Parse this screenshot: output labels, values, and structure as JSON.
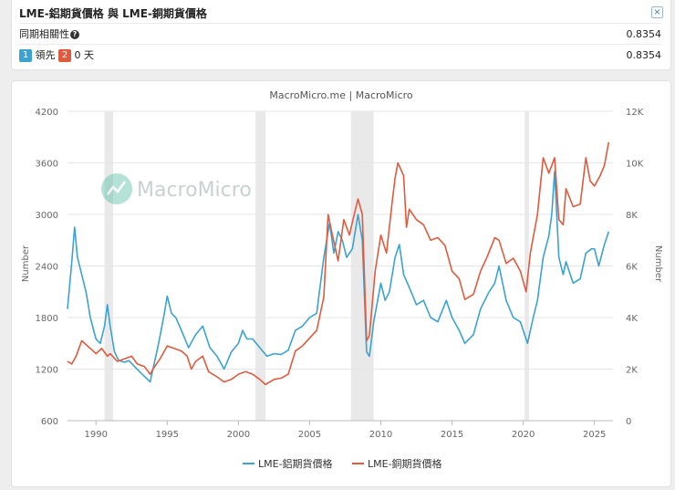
{
  "header": {
    "title": "LME-鋁期貨價格 與 LME-銅期貨價格",
    "close_label": "×",
    "correlation_label": "同期相關性",
    "correlation_value": "0.8354",
    "lead_badge_1": "1",
    "lead_text": "領先",
    "lead_badge_2": "2",
    "lead_days": "0 天",
    "lead_value": "0.8354"
  },
  "colors": {
    "aluminum": "#3aa3d1",
    "copper": "#e05a3e",
    "recession": "#e9e9e9"
  },
  "chart_data": {
    "type": "line",
    "title": "MacroMicro.me | MacroMicro",
    "watermark": "MacroMicro",
    "xlabel": "",
    "x_ticks": [
      "1990",
      "1995",
      "2000",
      "2005",
      "2010",
      "2015",
      "2020",
      "2025"
    ],
    "x_range": [
      1988,
      2026.3
    ],
    "y_left": {
      "label": "Number",
      "range": [
        600,
        4200
      ],
      "ticks": [
        "600",
        "1200",
        "1800",
        "2400",
        "3000",
        "3600",
        "4200"
      ]
    },
    "y_right": {
      "label": "Number",
      "range": [
        0,
        12000
      ],
      "ticks": [
        "0",
        "2K",
        "4K",
        "6K",
        "8K",
        "10K",
        "12K"
      ]
    },
    "recession_bands": [
      [
        1990.6,
        1991.2
      ],
      [
        2001.2,
        2001.9
      ],
      [
        2007.9,
        2009.5
      ],
      [
        2020.1,
        2020.4
      ]
    ],
    "series": [
      {
        "name": "LME-鋁期貨價格",
        "axis": "left",
        "points": [
          [
            1988,
            1900
          ],
          [
            1988.3,
            2450
          ],
          [
            1988.5,
            2850
          ],
          [
            1988.7,
            2500
          ],
          [
            1989,
            2300
          ],
          [
            1989.3,
            2100
          ],
          [
            1989.6,
            1800
          ],
          [
            1990,
            1550
          ],
          [
            1990.3,
            1500
          ],
          [
            1990.6,
            1700
          ],
          [
            1990.8,
            1950
          ],
          [
            1991,
            1700
          ],
          [
            1991.3,
            1400
          ],
          [
            1991.6,
            1300
          ],
          [
            1992,
            1280
          ],
          [
            1992.3,
            1300
          ],
          [
            1992.6,
            1250
          ],
          [
            1993,
            1180
          ],
          [
            1993.5,
            1100
          ],
          [
            1993.8,
            1050
          ],
          [
            1994,
            1200
          ],
          [
            1994.4,
            1500
          ],
          [
            1994.8,
            1850
          ],
          [
            1995,
            2050
          ],
          [
            1995.3,
            1850
          ],
          [
            1995.6,
            1800
          ],
          [
            1996,
            1650
          ],
          [
            1996.5,
            1450
          ],
          [
            1997,
            1600
          ],
          [
            1997.5,
            1700
          ],
          [
            1998,
            1450
          ],
          [
            1998.5,
            1350
          ],
          [
            1999,
            1200
          ],
          [
            1999.5,
            1400
          ],
          [
            2000,
            1500
          ],
          [
            2000.3,
            1650
          ],
          [
            2000.6,
            1550
          ],
          [
            2001,
            1550
          ],
          [
            2001.5,
            1450
          ],
          [
            2002,
            1350
          ],
          [
            2002.5,
            1380
          ],
          [
            2003,
            1370
          ],
          [
            2003.5,
            1420
          ],
          [
            2004,
            1650
          ],
          [
            2004.5,
            1700
          ],
          [
            2005,
            1800
          ],
          [
            2005.5,
            1850
          ],
          [
            2006,
            2500
          ],
          [
            2006.4,
            2900
          ],
          [
            2006.7,
            2550
          ],
          [
            2007,
            2800
          ],
          [
            2007.3,
            2700
          ],
          [
            2007.6,
            2500
          ],
          [
            2008,
            2600
          ],
          [
            2008.4,
            3000
          ],
          [
            2008.7,
            2700
          ],
          [
            2009,
            1400
          ],
          [
            2009.2,
            1350
          ],
          [
            2009.5,
            1750
          ],
          [
            2010,
            2200
          ],
          [
            2010.3,
            2000
          ],
          [
            2010.6,
            2100
          ],
          [
            2011,
            2500
          ],
          [
            2011.3,
            2650
          ],
          [
            2011.6,
            2300
          ],
          [
            2012,
            2150
          ],
          [
            2012.5,
            1950
          ],
          [
            2013,
            2000
          ],
          [
            2013.5,
            1800
          ],
          [
            2014,
            1750
          ],
          [
            2014.6,
            2000
          ],
          [
            2015,
            1800
          ],
          [
            2015.5,
            1650
          ],
          [
            2015.9,
            1500
          ],
          [
            2016.5,
            1600
          ],
          [
            2017,
            1900
          ],
          [
            2017.6,
            2100
          ],
          [
            2018,
            2200
          ],
          [
            2018.3,
            2400
          ],
          [
            2018.8,
            2000
          ],
          [
            2019.3,
            1800
          ],
          [
            2019.8,
            1750
          ],
          [
            2020.3,
            1500
          ],
          [
            2020.7,
            1800
          ],
          [
            2021,
            2000
          ],
          [
            2021.4,
            2500
          ],
          [
            2021.8,
            2750
          ],
          [
            2022,
            3000
          ],
          [
            2022.2,
            3500
          ],
          [
            2022.5,
            2500
          ],
          [
            2022.8,
            2300
          ],
          [
            2023,
            2450
          ],
          [
            2023.5,
            2200
          ],
          [
            2024,
            2250
          ],
          [
            2024.4,
            2550
          ],
          [
            2024.8,
            2600
          ],
          [
            2025,
            2600
          ],
          [
            2025.3,
            2400
          ],
          [
            2025.7,
            2650
          ],
          [
            2026,
            2800
          ]
        ]
      },
      {
        "name": "LME-銅期貨價格",
        "axis": "right",
        "points": [
          [
            1988,
            2300
          ],
          [
            1988.3,
            2200
          ],
          [
            1988.6,
            2500
          ],
          [
            1989,
            3100
          ],
          [
            1989.4,
            2900
          ],
          [
            1989.8,
            2700
          ],
          [
            1990,
            2600
          ],
          [
            1990.4,
            2800
          ],
          [
            1990.8,
            2500
          ],
          [
            1991,
            2600
          ],
          [
            1991.5,
            2300
          ],
          [
            1992,
            2400
          ],
          [
            1992.5,
            2500
          ],
          [
            1992.9,
            2200
          ],
          [
            1993.4,
            2100
          ],
          [
            1993.8,
            1800
          ],
          [
            1994,
            2000
          ],
          [
            1994.5,
            2400
          ],
          [
            1995,
            2900
          ],
          [
            1995.5,
            2800
          ],
          [
            1996,
            2700
          ],
          [
            1996.4,
            2500
          ],
          [
            1996.7,
            2000
          ],
          [
            1997,
            2300
          ],
          [
            1997.5,
            2500
          ],
          [
            1997.9,
            1900
          ],
          [
            1998.5,
            1700
          ],
          [
            1999,
            1500
          ],
          [
            1999.5,
            1600
          ],
          [
            2000,
            1800
          ],
          [
            2000.5,
            1900
          ],
          [
            2001,
            1800
          ],
          [
            2001.5,
            1600
          ],
          [
            2001.9,
            1400
          ],
          [
            2002.5,
            1600
          ],
          [
            2003,
            1650
          ],
          [
            2003.5,
            1800
          ],
          [
            2004,
            2700
          ],
          [
            2004.5,
            2900
          ],
          [
            2005,
            3200
          ],
          [
            2005.5,
            3500
          ],
          [
            2006,
            4800
          ],
          [
            2006.3,
            8000
          ],
          [
            2006.6,
            7200
          ],
          [
            2007,
            6200
          ],
          [
            2007.4,
            7800
          ],
          [
            2007.8,
            7200
          ],
          [
            2008,
            7700
          ],
          [
            2008.4,
            8600
          ],
          [
            2008.7,
            8000
          ],
          [
            2009,
            3100
          ],
          [
            2009.2,
            3300
          ],
          [
            2009.6,
            5800
          ],
          [
            2010,
            7200
          ],
          [
            2010.4,
            6500
          ],
          [
            2010.8,
            8500
          ],
          [
            2011,
            9400
          ],
          [
            2011.2,
            10000
          ],
          [
            2011.6,
            9500
          ],
          [
            2011.8,
            7500
          ],
          [
            2012,
            8200
          ],
          [
            2012.5,
            7800
          ],
          [
            2013,
            7600
          ],
          [
            2013.5,
            7000
          ],
          [
            2014,
            7100
          ],
          [
            2014.5,
            6800
          ],
          [
            2015,
            5800
          ],
          [
            2015.5,
            5500
          ],
          [
            2015.9,
            4700
          ],
          [
            2016.5,
            4900
          ],
          [
            2017,
            5800
          ],
          [
            2017.5,
            6400
          ],
          [
            2018,
            7100
          ],
          [
            2018.3,
            7000
          ],
          [
            2018.8,
            6100
          ],
          [
            2019.3,
            6300
          ],
          [
            2019.8,
            5800
          ],
          [
            2020.2,
            5000
          ],
          [
            2020.5,
            6500
          ],
          [
            2021,
            8000
          ],
          [
            2021.4,
            10200
          ],
          [
            2021.8,
            9600
          ],
          [
            2022,
            9900
          ],
          [
            2022.2,
            10200
          ],
          [
            2022.5,
            7800
          ],
          [
            2022.8,
            7600
          ],
          [
            2023,
            9000
          ],
          [
            2023.5,
            8300
          ],
          [
            2024,
            8400
          ],
          [
            2024.4,
            10200
          ],
          [
            2024.7,
            9300
          ],
          [
            2025,
            9100
          ],
          [
            2025.4,
            9500
          ],
          [
            2025.7,
            9900
          ],
          [
            2026,
            10800
          ]
        ]
      }
    ]
  }
}
